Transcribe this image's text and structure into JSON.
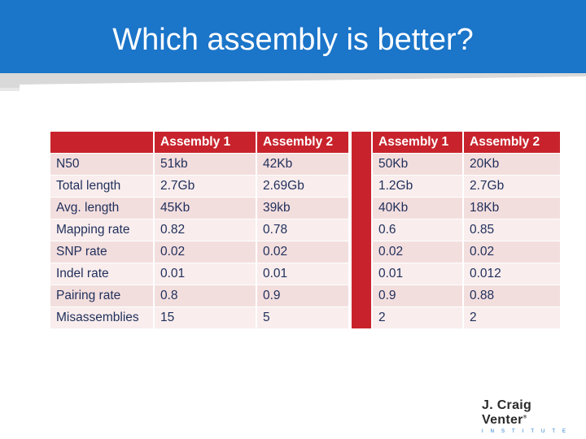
{
  "slide": {
    "title": "Which assembly is better?"
  },
  "left_table": {
    "headers": [
      "",
      "Assembly 1",
      "Assembly 2"
    ],
    "rows": [
      [
        "N50",
        "51kb",
        "42Kb"
      ],
      [
        "Total length",
        "2.7Gb",
        "2.69Gb"
      ],
      [
        "Avg. length",
        "45Kb",
        "39kb"
      ],
      [
        "Mapping rate",
        "0.82",
        "0.78"
      ],
      [
        "SNP rate",
        "0.02",
        "0.02"
      ],
      [
        "Indel rate",
        "0.01",
        "0.01"
      ],
      [
        "Pairing rate",
        "0.8",
        "0.9"
      ],
      [
        "Misassemblies",
        "15",
        "5"
      ]
    ]
  },
  "right_table": {
    "headers": [
      "Assembly 1",
      "Assembly 2"
    ],
    "rows": [
      [
        "50Kb",
        "20Kb"
      ],
      [
        "1.2Gb",
        "2.7Gb"
      ],
      [
        "40Kb",
        "18Kb"
      ],
      [
        "0.6",
        "0.85"
      ],
      [
        "0.02",
        "0.02"
      ],
      [
        "0.01",
        "0.012"
      ],
      [
        "0.9",
        "0.88"
      ],
      [
        "2",
        "2"
      ]
    ]
  },
  "logo": {
    "name": "J. Craig Venter",
    "trademark": "®",
    "subtitle": "INSTITUTE"
  },
  "colors": {
    "header_bar": "#1b75c9",
    "table_header": "#c8232c",
    "row_light": "#f9eded",
    "row_dark": "#f3dede"
  }
}
